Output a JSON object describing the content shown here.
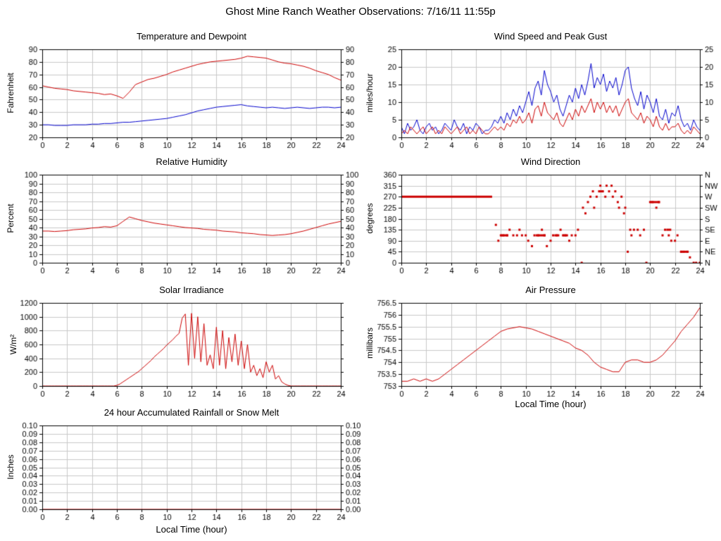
{
  "page_title": "Ghost Mine Ranch Weather Observations: 7/16/11 11:55p",
  "chart_data": [
    {
      "id": "temperature_dewpoint",
      "type": "line",
      "title": "Temperature and Dewpoint",
      "ylabel": "Fahrenheit",
      "x": {
        "min": 0,
        "max": 24,
        "step": 2
      },
      "y": {
        "min": 20,
        "max": 90,
        "step": 10,
        "format": "int",
        "right_labels": true
      },
      "series": [
        {
          "name": "Temperature",
          "color": "#cc0000",
          "x0": 0,
          "dx": 0.5,
          "values": [
            61,
            60,
            59,
            58.5,
            58,
            57,
            56.5,
            56,
            55.5,
            55,
            54,
            54.5,
            53,
            51,
            56,
            62,
            64,
            66,
            67,
            68.5,
            70,
            72,
            73.5,
            75,
            76.5,
            78,
            79,
            80,
            80.5,
            81,
            81.5,
            82,
            83,
            84.5,
            84,
            83.5,
            83,
            81.5,
            80,
            79,
            78.5,
            77.5,
            76.5,
            75,
            73,
            71.5,
            70,
            67.5,
            65.5
          ]
        },
        {
          "name": "Dewpoint",
          "color": "#0000cc",
          "x0": 0,
          "dx": 0.5,
          "values": [
            30,
            30,
            29.5,
            29.5,
            29.5,
            30,
            30,
            30,
            30.5,
            30.5,
            31,
            31,
            31.5,
            32,
            32,
            32.5,
            33,
            33.5,
            34,
            34.5,
            35,
            36,
            37,
            38,
            39.5,
            41,
            42,
            43,
            44,
            44.5,
            45,
            45.5,
            46,
            45,
            44.5,
            44,
            43.5,
            44,
            43.5,
            43,
            43.5,
            44,
            43.5,
            43,
            43.5,
            44,
            44,
            43.5,
            44
          ]
        }
      ]
    },
    {
      "id": "wind_speed_gust",
      "type": "line",
      "title": "Wind Speed and Peak Gust",
      "ylabel": "miles/hour",
      "x": {
        "min": 0,
        "max": 24,
        "step": 2
      },
      "y": {
        "min": 0,
        "max": 25,
        "step": 5,
        "format": "int",
        "right_labels": true
      },
      "series": [
        {
          "name": "Peak Gust",
          "color": "#0000cc",
          "x0": 0,
          "dx": 0.25,
          "values": [
            3,
            1,
            4,
            2,
            3,
            5,
            2,
            1,
            3,
            4,
            2,
            3,
            1,
            2,
            4,
            3,
            2,
            5,
            3,
            2,
            4,
            1,
            3,
            2,
            4,
            3,
            1,
            2,
            2,
            3,
            5,
            4,
            6,
            4,
            7,
            5,
            8,
            6,
            9,
            7,
            10,
            13,
            9,
            14,
            16,
            12,
            19,
            15,
            13,
            10,
            12,
            8,
            6,
            9,
            12,
            10,
            14,
            11,
            15,
            12,
            16,
            21,
            14,
            17,
            15,
            18,
            13,
            16,
            14,
            17,
            12,
            15,
            19,
            20,
            14,
            11,
            9,
            13,
            8,
            12,
            10,
            7,
            11,
            6,
            5,
            8,
            4,
            7,
            6,
            9,
            5,
            3,
            4,
            2,
            5,
            3,
            2
          ]
        },
        {
          "name": "Wind Speed",
          "color": "#cc0000",
          "x0": 0,
          "dx": 0.25,
          "values": [
            1,
            2,
            1,
            3,
            2,
            1,
            2,
            3,
            1,
            2,
            3,
            1,
            2,
            1,
            3,
            2,
            1,
            2,
            3,
            1,
            2,
            3,
            1,
            2,
            1,
            3,
            2,
            1,
            1,
            2,
            3,
            2,
            3,
            2,
            4,
            3,
            5,
            4,
            6,
            4,
            5,
            7,
            4,
            8,
            9,
            6,
            10,
            7,
            6,
            5,
            7,
            4,
            3,
            5,
            7,
            5,
            8,
            6,
            9,
            7,
            9,
            11,
            7,
            10,
            8,
            10,
            7,
            9,
            7,
            9,
            6,
            8,
            10,
            11,
            7,
            6,
            5,
            7,
            4,
            6,
            5,
            3,
            6,
            3,
            2,
            4,
            2,
            3,
            3,
            4,
            2,
            1,
            2,
            1,
            3,
            2,
            1
          ]
        }
      ]
    },
    {
      "id": "relative_humidity",
      "type": "line",
      "title": "Relative Humidity",
      "ylabel": "Percent",
      "x": {
        "min": 0,
        "max": 24,
        "step": 2
      },
      "y": {
        "min": 0,
        "max": 100,
        "step": 10,
        "format": "int",
        "right_labels": true
      },
      "series": [
        {
          "name": "Relative Humidity",
          "color": "#cc0000",
          "x0": 0,
          "dx": 0.5,
          "values": [
            36,
            36,
            35.5,
            36,
            36.5,
            37.5,
            38,
            38.5,
            39.5,
            40,
            41,
            40.5,
            42,
            47,
            52,
            50,
            48,
            46.5,
            45,
            44,
            43,
            42,
            41,
            40,
            39.5,
            39,
            38,
            37.5,
            37,
            36,
            35.5,
            35,
            34,
            33.5,
            33,
            32,
            31.5,
            31,
            31.5,
            32,
            33,
            34.5,
            36,
            38,
            40,
            42,
            44,
            45.5,
            47
          ]
        }
      ]
    },
    {
      "id": "wind_direction",
      "type": "scatter",
      "title": "Wind Direction",
      "ylabel": "degrees",
      "x": {
        "min": 0,
        "max": 24,
        "step": 2
      },
      "y": {
        "min": 0,
        "max": 360,
        "step": 45,
        "format": "int",
        "right_compass": [
          "N",
          "NE",
          "E",
          "SE",
          "S",
          "SW",
          "W",
          "NW",
          "N"
        ]
      },
      "series": [
        {
          "name": "Wind Direction",
          "color": "#cc0000",
          "runs": [
            [
              0,
              7.3,
              270
            ],
            [
              8.0,
              8.6,
              112
            ],
            [
              10.8,
              11.6,
              112
            ],
            [
              12.3,
              12.7,
              112
            ],
            [
              13.0,
              13.4,
              112
            ],
            [
              15.9,
              16.2,
              292
            ],
            [
              20.0,
              20.8,
              248
            ],
            [
              21.3,
              21.7,
              135
            ],
            [
              22.4,
              23.1,
              45
            ]
          ],
          "points": [
            [
              7.6,
              155
            ],
            [
              7.8,
              90
            ],
            [
              8,
              112
            ],
            [
              8.2,
              112
            ],
            [
              8.5,
              112
            ],
            [
              8.7,
              135
            ],
            [
              9,
              112
            ],
            [
              9.3,
              112
            ],
            [
              9.5,
              135
            ],
            [
              9.7,
              112
            ],
            [
              10,
              112
            ],
            [
              10.2,
              90
            ],
            [
              10.5,
              68
            ],
            [
              10.7,
              112
            ],
            [
              11,
              112
            ],
            [
              11.3,
              135
            ],
            [
              11.5,
              112
            ],
            [
              11.7,
              68
            ],
            [
              12,
              90
            ],
            [
              12.2,
              112
            ],
            [
              12.5,
              112
            ],
            [
              12.8,
              135
            ],
            [
              13,
              112
            ],
            [
              13.2,
              112
            ],
            [
              13.5,
              90
            ],
            [
              13.7,
              112
            ],
            [
              14,
              112
            ],
            [
              14.2,
              135
            ],
            [
              14.5,
              0
            ],
            [
              14.6,
              225
            ],
            [
              14.8,
              202
            ],
            [
              15,
              248
            ],
            [
              15.2,
              270
            ],
            [
              15.4,
              292
            ],
            [
              15.5,
              225
            ],
            [
              15.7,
              270
            ],
            [
              15.9,
              292
            ],
            [
              16,
              315
            ],
            [
              16.2,
              292
            ],
            [
              16.4,
              270
            ],
            [
              16.5,
              315
            ],
            [
              16.7,
              292
            ],
            [
              16.9,
              315
            ],
            [
              17,
              270
            ],
            [
              17.2,
              292
            ],
            [
              17.4,
              248
            ],
            [
              17.5,
              225
            ],
            [
              17.7,
              270
            ],
            [
              17.9,
              202
            ],
            [
              18,
              225
            ],
            [
              18.2,
              45
            ],
            [
              18.4,
              135
            ],
            [
              18.5,
              112
            ],
            [
              18.7,
              135
            ],
            [
              19,
              135
            ],
            [
              19.2,
              112
            ],
            [
              19.5,
              135
            ],
            [
              19.7,
              0
            ],
            [
              20,
              248
            ],
            [
              20.2,
              248
            ],
            [
              20.5,
              225
            ],
            [
              20.7,
              248
            ],
            [
              21,
              112
            ],
            [
              21.2,
              135
            ],
            [
              21.5,
              112
            ],
            [
              21.7,
              90
            ],
            [
              22,
              90
            ],
            [
              22.2,
              112
            ],
            [
              22.5,
              45
            ],
            [
              22.7,
              45
            ],
            [
              23,
              45
            ],
            [
              23.2,
              22
            ],
            [
              23.5,
              0
            ],
            [
              23.7,
              0
            ],
            [
              24,
              0
            ]
          ]
        }
      ]
    },
    {
      "id": "solar_irradiance",
      "type": "line",
      "title": "Solar Irradiance",
      "ylabel": "W/m²",
      "x": {
        "min": 0,
        "max": 24,
        "step": 2
      },
      "y": {
        "min": 0,
        "max": 1200,
        "step": 200,
        "format": "int",
        "right_labels": false
      },
      "series": [
        {
          "name": "Solar Irradiance",
          "color": "#cc0000",
          "x0": 0,
          "dx": 0.25,
          "values": [
            0,
            0,
            0,
            0,
            0,
            0,
            0,
            0,
            0,
            0,
            0,
            0,
            0,
            0,
            0,
            0,
            0,
            0,
            0,
            0,
            0,
            0,
            0,
            0,
            10,
            30,
            60,
            90,
            120,
            150,
            180,
            210,
            250,
            290,
            330,
            370,
            420,
            460,
            500,
            540,
            590,
            630,
            670,
            720,
            760,
            980,
            1040,
            300,
            1050,
            400,
            1000,
            350,
            900,
            300,
            450,
            250,
            850,
            300,
            800,
            250,
            700,
            350,
            750,
            300,
            650,
            250,
            600,
            200,
            300,
            150,
            250,
            120,
            350,
            200,
            300,
            100,
            150,
            60,
            30,
            10,
            0,
            0,
            0,
            0,
            0,
            0,
            0,
            0,
            0,
            0,
            0,
            0,
            0,
            0,
            0,
            0,
            0
          ]
        }
      ]
    },
    {
      "id": "air_pressure",
      "type": "line",
      "title": "Air Pressure",
      "ylabel": "millibars",
      "xlabel": "Local Time (hour)",
      "x": {
        "min": 0,
        "max": 24,
        "step": 2
      },
      "y": {
        "min": 753,
        "max": 756.5,
        "step": 0.5,
        "format": "dec1auto",
        "right_labels": false
      },
      "series": [
        {
          "name": "Air Pressure",
          "color": "#cc0000",
          "x0": 0,
          "dx": 0.5,
          "values": [
            753.2,
            753.2,
            753.3,
            753.2,
            753.3,
            753.2,
            753.3,
            753.5,
            753.7,
            753.9,
            754.1,
            754.3,
            754.5,
            754.7,
            754.9,
            755.1,
            755.3,
            755.4,
            755.45,
            755.5,
            755.45,
            755.4,
            755.3,
            755.2,
            755.1,
            755.0,
            754.9,
            754.8,
            754.6,
            754.5,
            754.3,
            754.0,
            753.8,
            753.7,
            753.6,
            753.6,
            754.0,
            754.1,
            754.1,
            754.0,
            754.0,
            754.1,
            754.3,
            754.6,
            754.9,
            755.3,
            755.6,
            755.9,
            756.3
          ]
        }
      ]
    },
    {
      "id": "rainfall",
      "type": "line",
      "title": "24 hour Accumulated Rainfall or Snow Melt",
      "ylabel": "Inches",
      "xlabel": "Local Time (hour)",
      "x": {
        "min": 0,
        "max": 24,
        "step": 2
      },
      "y": {
        "min": 0,
        "max": 0.1,
        "step": 0.01,
        "format": "dec2",
        "right_labels": true
      },
      "series": [
        {
          "name": "Accumulated Rainfall",
          "color": "#cc0000",
          "x0": 0,
          "dx": 24,
          "values": [
            0,
            0
          ]
        }
      ]
    }
  ]
}
